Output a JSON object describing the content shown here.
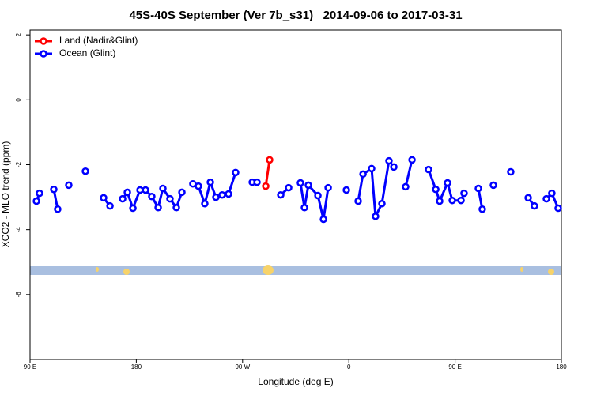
{
  "chart_data": {
    "type": "line",
    "title": "45S-40S September (Ver 7b_s31)   2014-09-06 to 2017-03-31",
    "x_label": "Longitude (deg E)",
    "y_label": "XCO2 - MLO trend (ppm)",
    "xlim": [
      90,
      540
    ],
    "xticks": [
      {
        "value": 90,
        "label": "90 E"
      },
      180,
      {
        "value": 270,
        "label": "90 W"
      },
      {
        "value": 360,
        "label": "0"
      },
      {
        "value": 450,
        "label": "90 E"
      },
      {
        "value": 540,
        "label": "180"
      }
    ],
    "ylim": [
      -8,
      2.15
    ],
    "yticks": [
      2,
      0,
      -2,
      -4,
      -6
    ],
    "legend": "top-left",
    "series": [
      {
        "name": "Land (Nadir&Glint)",
        "color": "#ff0000",
        "x": [
          289.6,
          292.9
        ],
        "values": [
          -2.66,
          -1.85
        ]
      },
      {
        "name": "Ocean (Glint)",
        "color": "#0000ff",
        "x": [
          95.4,
          98.0,
          null,
          110.1,
          113.4,
          null,
          122.8,
          null,
          136.9,
          null,
          152.3,
          157.7,
          null,
          168.4,
          172.4,
          177.1,
          183.1,
          187.8,
          193.1,
          198.5,
          202.5,
          208.5,
          213.9,
          218.6,
          null,
          227.9,
          232.6,
          238.0,
          242.7,
          247.4,
          252.7,
          258.1,
          264.1,
          null,
          278.2,
          282.2,
          null,
          302.3,
          309.0,
          null,
          319.0,
          322.4,
          325.7,
          333.8,
          338.5,
          342.5,
          null,
          357.9,
          null,
          367.9,
          372.0,
          379.3,
          382.6,
          388.0,
          394.0,
          398.1,
          null,
          408.1,
          413.5,
          null,
          427.5,
          433.6,
          436.9,
          443.6,
          447.6,
          455.0,
          457.6,
          null,
          469.7,
          473.0,
          null,
          482.4,
          null,
          497.1,
          null,
          511.9,
          517.2,
          null,
          527.3,
          531.9,
          537.3
        ],
        "values": [
          -3.12,
          -2.88,
          null,
          -2.76,
          -3.37,
          null,
          -2.63,
          null,
          -2.2,
          null,
          -3.02,
          -3.27,
          null,
          -3.05,
          -2.85,
          -3.34,
          -2.78,
          -2.78,
          -2.98,
          -3.32,
          -2.73,
          -3.05,
          -3.32,
          -2.85,
          null,
          -2.59,
          -2.66,
          -3.2,
          -2.54,
          -3.0,
          -2.93,
          -2.9,
          -2.24,
          null,
          -2.54,
          -2.54,
          null,
          -2.93,
          -2.71,
          null,
          -2.56,
          -3.32,
          -2.63,
          -2.95,
          -3.68,
          -2.71,
          null,
          -2.78,
          null,
          -3.12,
          -2.29,
          -2.12,
          -3.59,
          -3.2,
          -1.88,
          -2.07,
          null,
          -2.68,
          -1.85,
          null,
          -2.15,
          -2.76,
          -3.12,
          -2.56,
          -3.1,
          -3.1,
          -2.88,
          null,
          -2.73,
          -3.37,
          null,
          -2.63,
          null,
          -2.22,
          null,
          -3.02,
          -3.27,
          null,
          -3.05,
          -2.88,
          -3.34
        ]
      }
    ]
  }
}
